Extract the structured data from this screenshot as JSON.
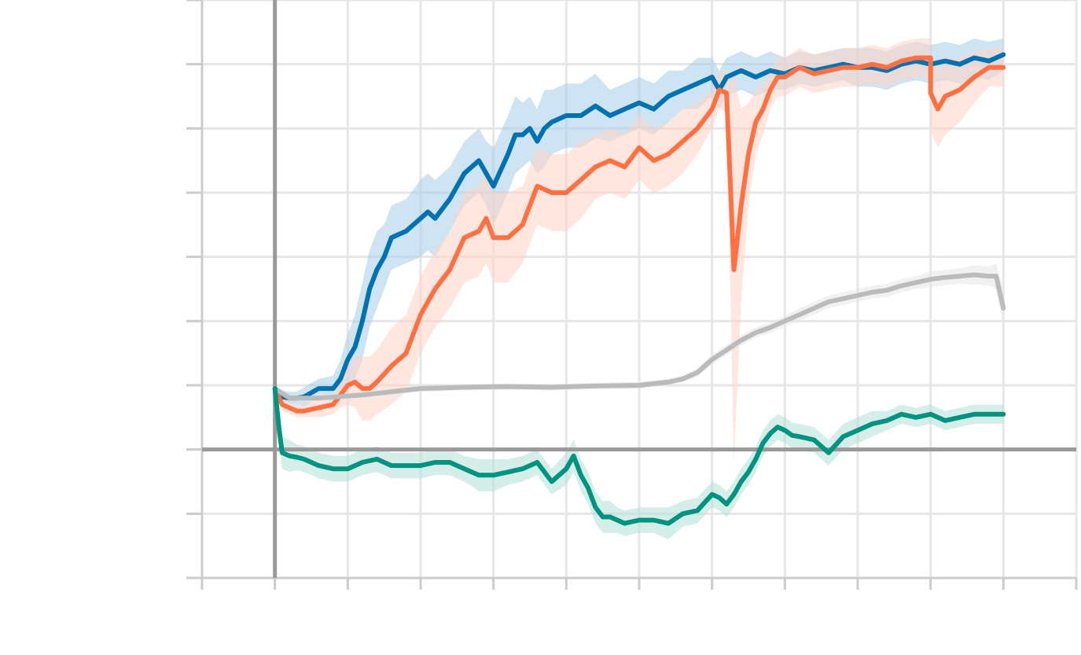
{
  "chart_data": {
    "type": "line",
    "title": "",
    "xlabel": "",
    "ylabel": "",
    "xlim": [
      -0.5,
      5.5
    ],
    "ylim": [
      -2,
      7
    ],
    "x_ticks": [
      -0.5,
      0,
      0.5,
      1,
      1.5,
      2,
      2.5,
      3,
      3.5,
      4,
      4.5,
      5,
      5.5
    ],
    "y_ticks": [
      -2,
      -1,
      0,
      1,
      2,
      3,
      4,
      5,
      6,
      7
    ],
    "grid": true,
    "zero_lines": {
      "x": 0,
      "y": 0
    },
    "series": [
      {
        "color": "#0072B2",
        "band_color": "#A6CEE8",
        "x": [
          0,
          0.05,
          0.1,
          0.15,
          0.2,
          0.3,
          0.4,
          0.45,
          0.5,
          0.55,
          0.6,
          0.65,
          0.7,
          0.75,
          0.8,
          0.9,
          1.0,
          1.05,
          1.1,
          1.2,
          1.3,
          1.35,
          1.4,
          1.45,
          1.5,
          1.6,
          1.65,
          1.7,
          1.75,
          1.8,
          1.85,
          1.9,
          2.0,
          2.1,
          2.2,
          2.3,
          2.4,
          2.5,
          2.6,
          2.7,
          2.8,
          2.9,
          3.0,
          3.05,
          3.1,
          3.2,
          3.3,
          3.4,
          3.5,
          3.6,
          3.7,
          3.8,
          3.9,
          4.0,
          4.1,
          4.2,
          4.3,
          4.4,
          4.5,
          4.6,
          4.7,
          4.8,
          4.9,
          5.0
        ],
        "y": [
          0.95,
          0.82,
          0.8,
          0.8,
          0.82,
          0.95,
          0.95,
          1.1,
          1.4,
          1.6,
          2.0,
          2.5,
          2.8,
          3.0,
          3.3,
          3.4,
          3.6,
          3.7,
          3.6,
          3.9,
          4.3,
          4.4,
          4.5,
          4.3,
          4.1,
          4.6,
          4.9,
          4.9,
          5.0,
          4.8,
          5.0,
          5.1,
          5.2,
          5.2,
          5.35,
          5.2,
          5.3,
          5.4,
          5.3,
          5.5,
          5.6,
          5.7,
          5.8,
          5.6,
          5.8,
          5.9,
          5.8,
          5.9,
          5.85,
          5.95,
          5.9,
          5.95,
          6.0,
          5.95,
          5.95,
          5.9,
          6.0,
          6.05,
          6.0,
          6.05,
          6.0,
          6.1,
          6.05,
          6.15
        ]
      },
      {
        "color": "#FF7043",
        "band_color": "#FFD3C5",
        "x": [
          0,
          0.05,
          0.1,
          0.15,
          0.2,
          0.3,
          0.4,
          0.45,
          0.5,
          0.55,
          0.6,
          0.65,
          0.7,
          0.8,
          0.9,
          1.0,
          1.05,
          1.1,
          1.2,
          1.3,
          1.4,
          1.45,
          1.5,
          1.6,
          1.7,
          1.8,
          1.9,
          2.0,
          2.1,
          2.2,
          2.3,
          2.4,
          2.5,
          2.6,
          2.7,
          2.8,
          2.9,
          3.0,
          3.05,
          3.1,
          3.15,
          3.2,
          3.25,
          3.3,
          3.35,
          3.4,
          3.45,
          3.5,
          3.6,
          3.7,
          3.8,
          3.9,
          4.0,
          4.1,
          4.2,
          4.3,
          4.4,
          4.5,
          4.5001,
          4.55,
          4.6,
          4.7,
          4.8,
          4.9,
          5.0
        ],
        "y": [
          0.95,
          0.7,
          0.65,
          0.6,
          0.6,
          0.65,
          0.7,
          0.85,
          1.0,
          1.05,
          0.95,
          0.95,
          1.05,
          1.3,
          1.5,
          2.1,
          2.3,
          2.5,
          2.8,
          3.3,
          3.4,
          3.6,
          3.3,
          3.3,
          3.5,
          4.1,
          4.0,
          4.0,
          4.2,
          4.4,
          4.5,
          4.4,
          4.7,
          4.5,
          4.6,
          4.8,
          5.0,
          5.3,
          5.6,
          5.55,
          2.8,
          3.8,
          4.6,
          5.1,
          5.3,
          5.6,
          5.8,
          5.8,
          5.95,
          5.85,
          5.9,
          5.95,
          5.95,
          6.0,
          5.95,
          6.05,
          6.1,
          6.1,
          5.55,
          5.3,
          5.5,
          5.6,
          5.8,
          5.95,
          5.95
        ]
      },
      {
        "color": "#BBBBBB",
        "band_color": "#E5E5E5",
        "x": [
          0,
          0.1,
          0.3,
          0.6,
          1.0,
          1.3,
          1.6,
          1.9,
          2.2,
          2.5,
          2.7,
          2.8,
          2.9,
          3.0,
          3.1,
          3.2,
          3.3,
          3.4,
          3.5,
          3.6,
          3.7,
          3.8,
          3.9,
          4.0,
          4.1,
          4.2,
          4.3,
          4.4,
          4.5,
          4.6,
          4.7,
          4.8,
          4.9,
          4.95,
          5.0
        ],
        "y": [
          0.95,
          0.8,
          0.8,
          0.85,
          0.95,
          0.97,
          0.98,
          0.97,
          0.99,
          1.0,
          1.05,
          1.1,
          1.2,
          1.4,
          1.55,
          1.7,
          1.82,
          1.9,
          2.0,
          2.1,
          2.2,
          2.3,
          2.35,
          2.4,
          2.45,
          2.48,
          2.55,
          2.6,
          2.65,
          2.68,
          2.7,
          2.72,
          2.7,
          2.7,
          2.2
        ]
      },
      {
        "color": "#009480",
        "band_color": "#B2E0D7",
        "x": [
          0,
          0.03,
          0.05,
          0.1,
          0.15,
          0.2,
          0.3,
          0.4,
          0.5,
          0.6,
          0.7,
          0.8,
          0.9,
          1.0,
          1.1,
          1.2,
          1.3,
          1.4,
          1.5,
          1.6,
          1.7,
          1.8,
          1.9,
          2.0,
          2.05,
          2.1,
          2.15,
          2.2,
          2.25,
          2.3,
          2.35,
          2.4,
          2.5,
          2.6,
          2.7,
          2.8,
          2.9,
          3.0,
          3.05,
          3.1,
          3.15,
          3.2,
          3.25,
          3.3,
          3.35,
          3.4,
          3.45,
          3.5,
          3.55,
          3.6,
          3.7,
          3.8,
          3.9,
          4.0,
          4.05,
          4.1,
          4.2,
          4.3,
          4.4,
          4.5,
          4.6,
          4.7,
          4.8,
          4.9,
          5.0
        ],
        "y": [
          0.95,
          0.3,
          -0.05,
          -0.1,
          -0.12,
          -0.15,
          -0.25,
          -0.3,
          -0.3,
          -0.2,
          -0.15,
          -0.25,
          -0.25,
          -0.25,
          -0.2,
          -0.2,
          -0.3,
          -0.4,
          -0.4,
          -0.35,
          -0.3,
          -0.2,
          -0.5,
          -0.3,
          -0.1,
          -0.4,
          -0.6,
          -0.9,
          -1.05,
          -1.05,
          -1.1,
          -1.15,
          -1.1,
          -1.1,
          -1.15,
          -1.0,
          -0.95,
          -0.7,
          -0.75,
          -0.85,
          -0.7,
          -0.5,
          -0.35,
          -0.15,
          0.1,
          0.25,
          0.35,
          0.3,
          0.22,
          0.2,
          0.15,
          -0.05,
          0.2,
          0.3,
          0.35,
          0.4,
          0.45,
          0.55,
          0.5,
          0.55,
          0.45,
          0.5,
          0.55,
          0.55,
          0.55
        ]
      }
    ],
    "bands": [
      {
        "series": 0,
        "width": [
          0.05,
          0.1,
          0.1,
          0.1,
          0.15,
          0.15,
          0.2,
          0.3,
          0.4,
          0.5,
          0.6,
          0.6,
          0.6,
          0.5,
          0.5,
          0.5,
          0.6,
          0.6,
          0.6,
          0.5,
          0.5,
          0.5,
          0.5,
          0.5,
          0.6,
          0.6,
          0.6,
          0.5,
          0.5,
          0.5,
          0.6,
          0.5,
          0.5,
          0.5,
          0.5,
          0.4,
          0.4,
          0.4,
          0.4,
          0.4,
          0.3,
          0.4,
          0.3,
          0.3,
          0.3,
          0.3,
          0.3,
          0.3,
          0.25,
          0.25,
          0.25,
          0.25,
          0.25,
          0.3,
          0.3,
          0.3,
          0.3,
          0.3,
          0.3,
          0.3,
          0.3,
          0.3,
          0.3,
          0.25
        ]
      },
      {
        "series": 1,
        "width": [
          0.05,
          0.1,
          0.1,
          0.1,
          0.1,
          0.15,
          0.15,
          0.2,
          0.3,
          0.4,
          0.5,
          0.5,
          0.5,
          0.6,
          0.6,
          0.6,
          0.6,
          0.6,
          0.6,
          0.7,
          0.7,
          0.7,
          0.7,
          0.7,
          0.6,
          0.6,
          0.6,
          0.6,
          0.6,
          0.5,
          0.5,
          0.5,
          0.5,
          0.5,
          0.5,
          0.5,
          0.4,
          0.3,
          0.3,
          0.3,
          3.0,
          1.5,
          0.8,
          0.5,
          0.4,
          0.3,
          0.3,
          0.3,
          0.3,
          0.3,
          0.3,
          0.3,
          0.3,
          0.3,
          0.3,
          0.3,
          0.3,
          0.3,
          0.6,
          0.6,
          0.6,
          0.5,
          0.4,
          0.3,
          0.3
        ]
      },
      {
        "series": 2,
        "width": [
          0.05,
          0.05,
          0.05,
          0.05,
          0.05,
          0.05,
          0.05,
          0.05,
          0.05,
          0.05,
          0.05,
          0.05,
          0.06,
          0.08,
          0.08,
          0.08,
          0.08,
          0.08,
          0.08,
          0.1,
          0.1,
          0.1,
          0.1,
          0.1,
          0.1,
          0.1,
          0.1,
          0.1,
          0.12,
          0.12,
          0.12,
          0.15,
          0.15,
          0.2,
          0.3
        ]
      },
      {
        "series": 3,
        "width": [
          0.05,
          0.2,
          0.25,
          0.25,
          0.2,
          0.2,
          0.2,
          0.2,
          0.2,
          0.2,
          0.2,
          0.2,
          0.2,
          0.2,
          0.2,
          0.2,
          0.2,
          0.25,
          0.25,
          0.2,
          0.2,
          0.2,
          0.2,
          0.25,
          0.25,
          0.25,
          0.25,
          0.25,
          0.25,
          0.25,
          0.2,
          0.2,
          0.2,
          0.2,
          0.25,
          0.2,
          0.2,
          0.2,
          0.2,
          0.2,
          0.2,
          0.2,
          0.2,
          0.2,
          0.2,
          0.2,
          0.2,
          0.2,
          0.2,
          0.2,
          0.2,
          0.2,
          0.2,
          0.2,
          0.2,
          0.2,
          0.15,
          0.15,
          0.15,
          0.15,
          0.15,
          0.15,
          0.15,
          0.15,
          0.15
        ]
      }
    ]
  }
}
